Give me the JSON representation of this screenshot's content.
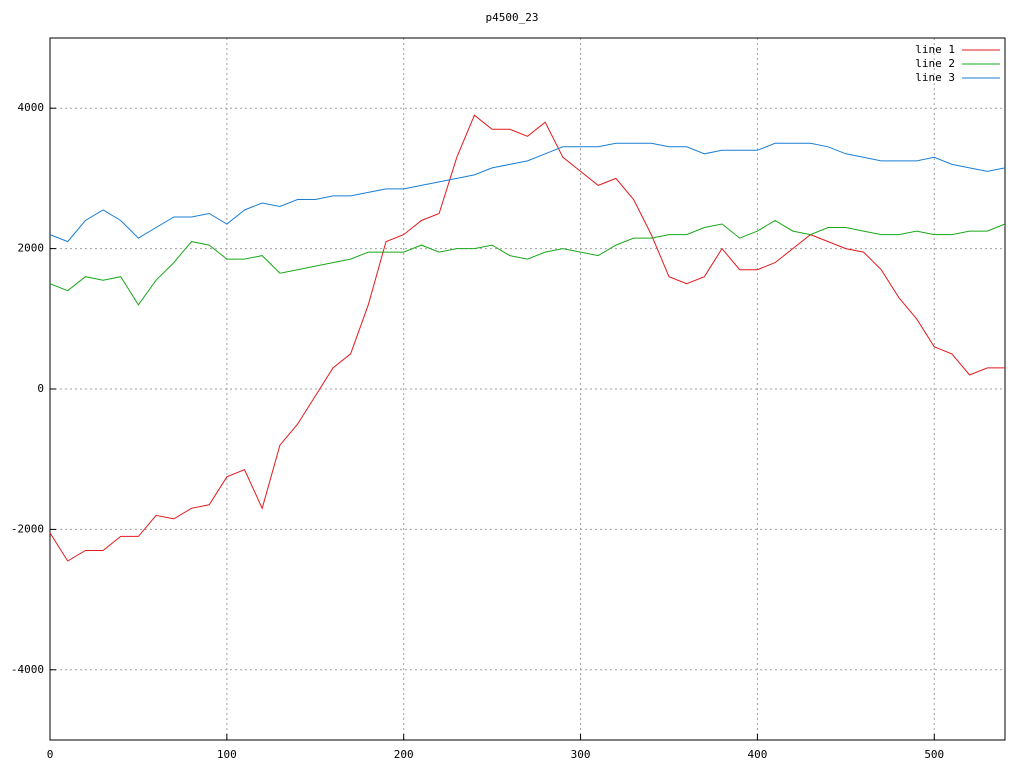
{
  "chart_data": {
    "type": "line",
    "title": "p4500_23",
    "x": [
      0,
      10,
      20,
      30,
      40,
      50,
      60,
      70,
      80,
      90,
      100,
      110,
      120,
      130,
      140,
      150,
      160,
      170,
      180,
      190,
      200,
      210,
      220,
      230,
      240,
      250,
      260,
      270,
      280,
      290,
      300,
      310,
      320,
      330,
      340,
      350,
      360,
      370,
      380,
      390,
      400,
      410,
      420,
      430,
      440,
      450,
      460,
      470,
      480,
      490,
      500,
      510,
      520,
      530,
      540
    ],
    "series": [
      {
        "name": "line 1",
        "color": "#e41a1c",
        "values": [
          -2050,
          -2450,
          -2300,
          -2300,
          -2100,
          -2100,
          -1800,
          -1850,
          -1700,
          -1650,
          -1250,
          -1150,
          -1700,
          -800,
          -500,
          -100,
          300,
          500,
          1200,
          2100,
          2200,
          2400,
          2500,
          3300,
          3900,
          3700,
          3700,
          3600,
          3800,
          3300,
          3100,
          2900,
          3000,
          2700,
          2200,
          1600,
          1500,
          1600,
          2000,
          1700,
          1700,
          1800,
          2000,
          2200,
          2100,
          2000,
          1950,
          1700,
          1300,
          1000,
          600,
          500,
          200,
          300,
          300
        ]
      },
      {
        "name": "line 2",
        "color": "#1aa81a",
        "values": [
          1500,
          1400,
          1600,
          1550,
          1600,
          1200,
          1550,
          1800,
          2100,
          2050,
          1850,
          1850,
          1900,
          1650,
          1700,
          1750,
          1800,
          1850,
          1950,
          1950,
          1950,
          2050,
          1950,
          2000,
          2000,
          2050,
          1900,
          1850,
          1950,
          2000,
          1950,
          1900,
          2050,
          2150,
          2150,
          2200,
          2200,
          2300,
          2350,
          2150,
          2250,
          2400,
          2250,
          2200,
          2300,
          2300,
          2250,
          2200,
          2200,
          2250,
          2200,
          2200,
          2250,
          2250,
          2350
        ]
      },
      {
        "name": "line 3",
        "color": "#1a7fd4",
        "values": [
          2200,
          2100,
          2400,
          2550,
          2400,
          2150,
          2300,
          2450,
          2450,
          2500,
          2350,
          2550,
          2650,
          2600,
          2700,
          2700,
          2750,
          2750,
          2800,
          2850,
          2850,
          2900,
          2950,
          3000,
          3050,
          3150,
          3200,
          3250,
          3350,
          3450,
          3450,
          3450,
          3500,
          3500,
          3500,
          3450,
          3450,
          3350,
          3400,
          3400,
          3400,
          3500,
          3500,
          3500,
          3450,
          3350,
          3300,
          3250,
          3250,
          3250,
          3300,
          3200,
          3150,
          3100,
          3150
        ]
      }
    ],
    "xlim": [
      0,
      540
    ],
    "xticks": [
      0,
      100,
      200,
      300,
      400,
      500
    ],
    "ylim": [
      -5000,
      5000
    ],
    "yticks": [
      -4000,
      -2000,
      0,
      2000,
      4000
    ],
    "grid": true,
    "legend": "top-right"
  }
}
